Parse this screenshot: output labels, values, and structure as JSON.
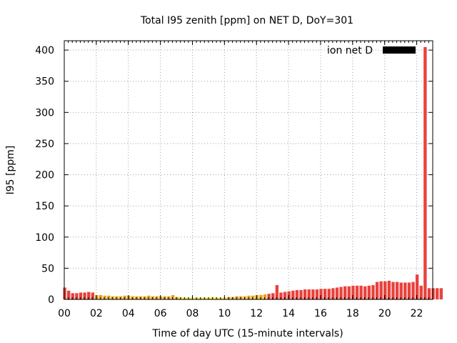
{
  "chart_data": {
    "type": "bar",
    "title": "Total I95 zenith [ppm] on NET D, DoY=301",
    "xlabel": "Time of day UTC (15-minute intervals)",
    "ylabel": "I95 [ppm]",
    "xlim": [
      0,
      23
    ],
    "ylim": [
      0,
      415
    ],
    "x_ticks": [
      {
        "value": 0,
        "label": "00"
      },
      {
        "value": 2,
        "label": "02"
      },
      {
        "value": 4,
        "label": "04"
      },
      {
        "value": 6,
        "label": "06"
      },
      {
        "value": 8,
        "label": "08"
      },
      {
        "value": 10,
        "label": "10"
      },
      {
        "value": 12,
        "label": "12"
      },
      {
        "value": 14,
        "label": "14"
      },
      {
        "value": 16,
        "label": "16"
      },
      {
        "value": 18,
        "label": "18"
      },
      {
        "value": 20,
        "label": "20"
      },
      {
        "value": 22,
        "label": "22"
      }
    ],
    "y_ticks": [
      0,
      50,
      100,
      150,
      200,
      250,
      300,
      350,
      400
    ],
    "grid": true,
    "legend": {
      "label": "ion net D",
      "color": "#000000",
      "position": "top-right"
    },
    "bar_interval_hours": 0.25,
    "colors": {
      "high": "#e8423c",
      "medium": "#e8a012",
      "low": "#f2e40a"
    },
    "values": [
      19,
      14,
      10,
      10,
      11,
      11,
      12,
      11,
      7,
      7,
      6,
      6,
      5,
      5,
      5,
      6,
      6,
      5,
      5,
      5,
      5,
      6,
      5,
      5,
      5,
      5,
      5,
      7,
      4,
      4,
      3,
      3,
      3,
      3,
      3,
      3,
      3,
      4,
      3,
      3,
      3,
      4,
      4,
      5,
      5,
      5,
      6,
      6,
      7,
      7,
      8,
      9,
      10,
      23,
      11,
      12,
      13,
      14,
      15,
      15,
      16,
      16,
      16,
      16,
      17,
      17,
      17,
      18,
      19,
      20,
      21,
      21,
      22,
      22,
      22,
      21,
      22,
      23,
      28,
      29,
      29,
      30,
      28,
      28,
      27,
      27,
      27,
      28,
      40,
      22,
      405,
      18,
      18,
      18,
      18
    ],
    "series_color_classes": [
      "high",
      "high",
      "high",
      "high",
      "high",
      "high",
      "high",
      "high",
      "medium",
      "medium",
      "medium",
      "medium",
      "medium",
      "medium",
      "medium",
      "medium",
      "medium",
      "medium",
      "medium",
      "medium",
      "medium",
      "medium",
      "medium",
      "medium",
      "medium",
      "medium",
      "medium",
      "medium",
      "medium",
      "low",
      "low",
      "low",
      "low",
      "low",
      "low",
      "low",
      "low",
      "low",
      "low",
      "low",
      "low",
      "medium",
      "medium",
      "medium",
      "medium",
      "medium",
      "medium",
      "medium",
      "medium",
      "medium",
      "medium",
      "high",
      "high",
      "high",
      "high",
      "high",
      "high",
      "high",
      "high",
      "high",
      "high",
      "high",
      "high",
      "high",
      "high",
      "high",
      "high",
      "high",
      "high",
      "high",
      "high",
      "high",
      "high",
      "high",
      "high",
      "high",
      "high",
      "high",
      "high",
      "high",
      "high",
      "high",
      "high",
      "high",
      "high",
      "high",
      "high",
      "high",
      "high",
      "high",
      "high",
      "high",
      "high",
      "high",
      "high"
    ]
  }
}
